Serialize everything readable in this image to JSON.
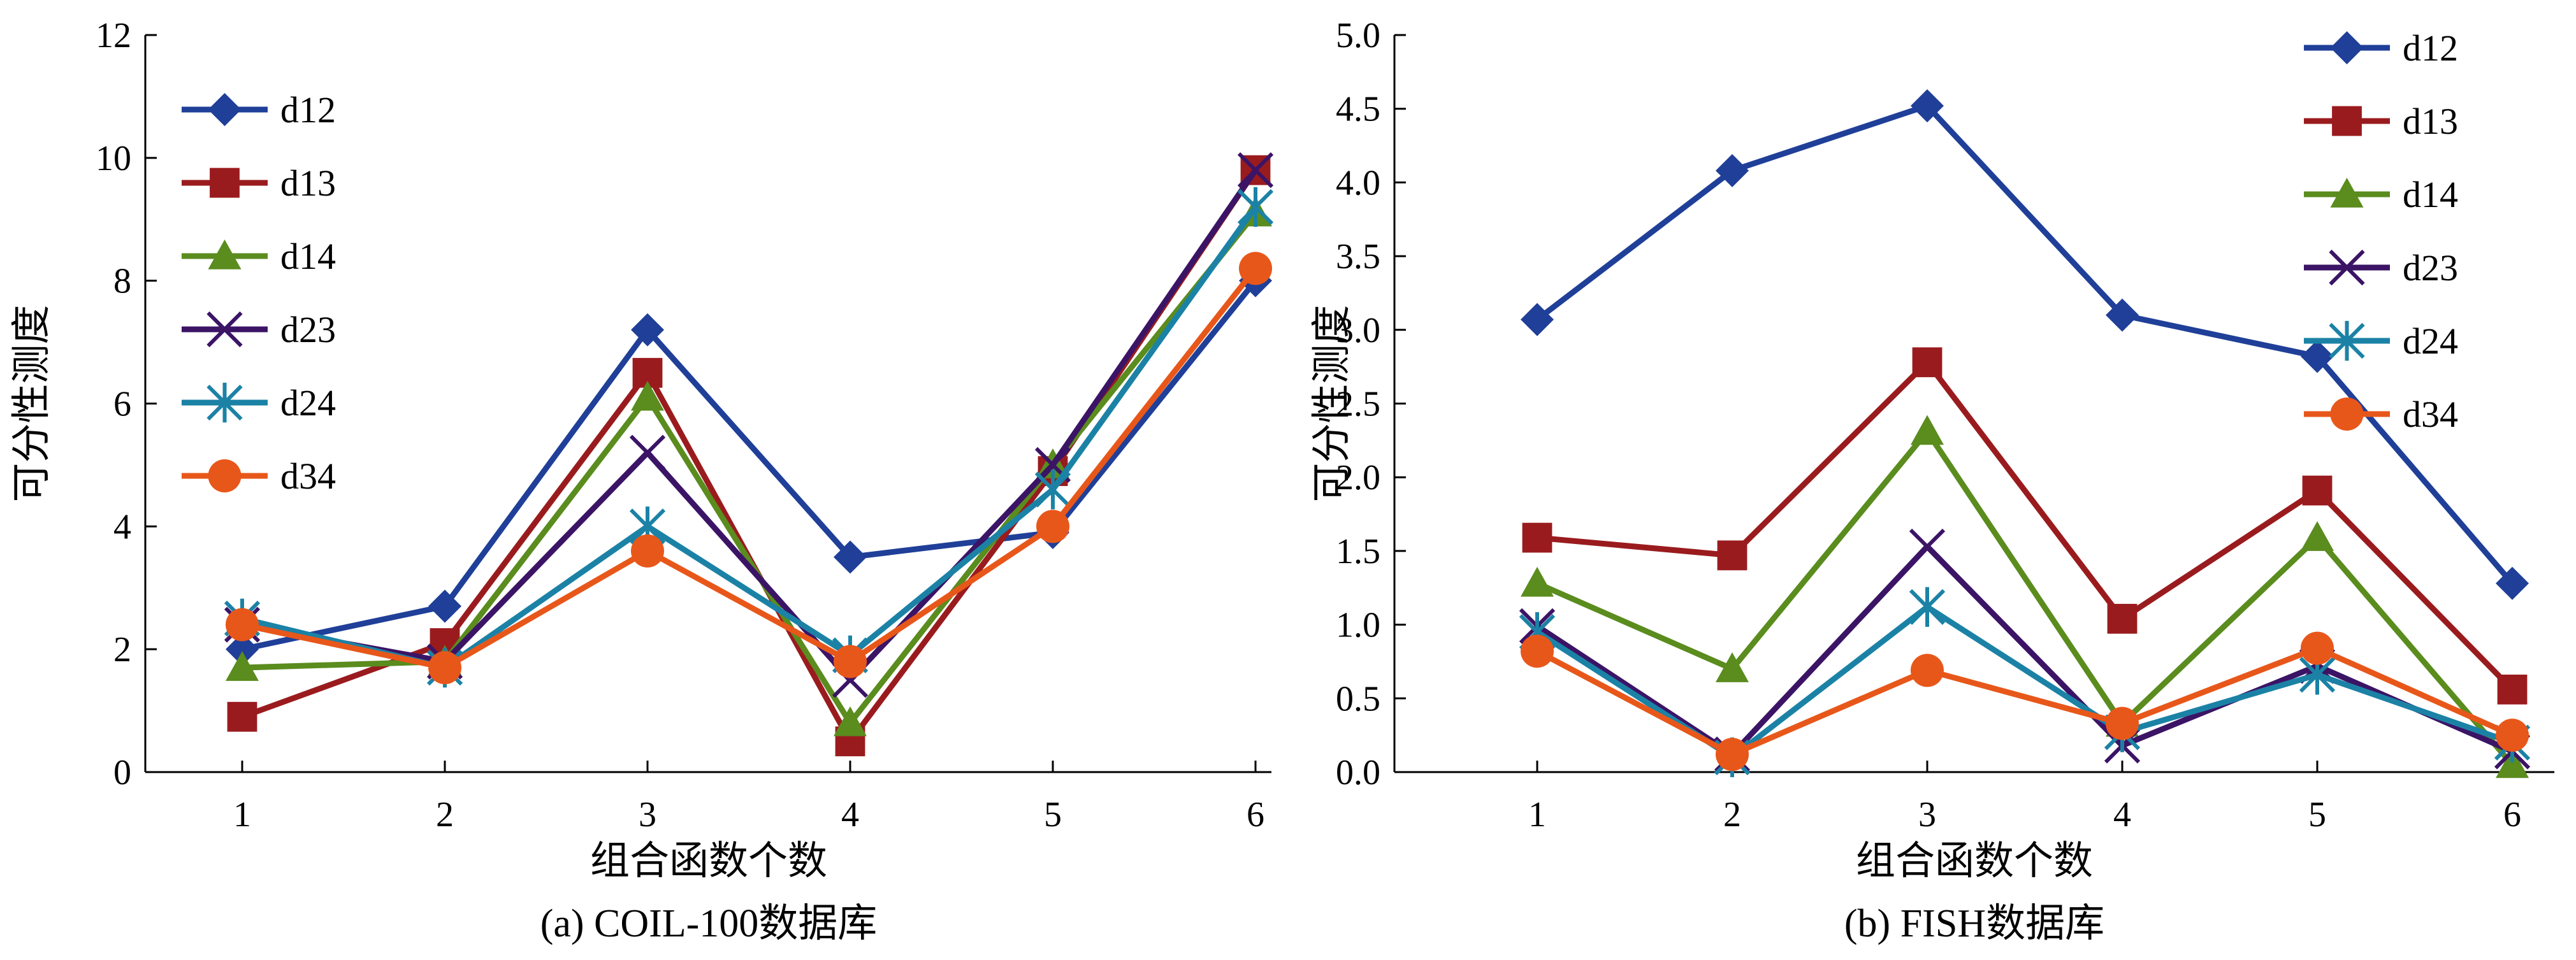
{
  "chart_data": [
    {
      "type": "line",
      "caption": "(a) COIL-100数据库",
      "xlabel": "组合函数个数",
      "ylabel": "可分性测度",
      "x": [
        1,
        2,
        3,
        4,
        5,
        6
      ],
      "ylim": [
        0,
        12
      ],
      "yticks": [
        "0",
        "2",
        "4",
        "6",
        "8",
        "10",
        "12"
      ],
      "legend_position": "top-left",
      "series": [
        {
          "name": "d12",
          "color": "#1f3f98",
          "marker": "diamond",
          "values": [
            2.0,
            2.7,
            7.2,
            3.5,
            3.9,
            8.0
          ]
        },
        {
          "name": "d13",
          "color": "#9a1b1e",
          "marker": "square",
          "values": [
            0.9,
            2.1,
            6.5,
            0.5,
            4.9,
            9.8
          ]
        },
        {
          "name": "d14",
          "color": "#5a8c1e",
          "marker": "triangle",
          "values": [
            1.7,
            1.8,
            6.1,
            0.8,
            5.0,
            9.1
          ]
        },
        {
          "name": "d23",
          "color": "#3b1466",
          "marker": "x",
          "values": [
            2.4,
            1.8,
            5.2,
            1.5,
            5.0,
            9.8
          ]
        },
        {
          "name": "d24",
          "color": "#1b82a6",
          "marker": "star",
          "values": [
            2.5,
            1.7,
            4.0,
            1.9,
            4.6,
            9.2
          ]
        },
        {
          "name": "d34",
          "color": "#e8571a",
          "marker": "circle",
          "values": [
            2.4,
            1.7,
            3.6,
            1.8,
            4.0,
            8.2
          ]
        }
      ]
    },
    {
      "type": "line",
      "caption": "(b) FISH数据库",
      "xlabel": "组合函数个数",
      "ylabel": "可分性测度",
      "x": [
        1,
        2,
        3,
        4,
        5,
        6
      ],
      "ylim": [
        0,
        5
      ],
      "yticks": [
        "0.0",
        "0.5",
        "1.0",
        "1.5",
        "2.0",
        "2.5",
        "3.0",
        "3.5",
        "4.0",
        "4.5",
        "5.0"
      ],
      "legend_position": "top-right",
      "series": [
        {
          "name": "d12",
          "color": "#1f3f98",
          "marker": "diamond",
          "values": [
            3.07,
            4.08,
            4.52,
            3.1,
            2.82,
            1.28
          ]
        },
        {
          "name": "d13",
          "color": "#9a1b1e",
          "marker": "square",
          "values": [
            1.59,
            1.47,
            2.78,
            1.04,
            1.91,
            0.56
          ]
        },
        {
          "name": "d14",
          "color": "#5a8c1e",
          "marker": "triangle",
          "values": [
            1.28,
            0.7,
            2.31,
            0.33,
            1.59,
            0.05
          ]
        },
        {
          "name": "d23",
          "color": "#3b1466",
          "marker": "x",
          "values": [
            0.99,
            0.12,
            1.53,
            0.18,
            0.72,
            0.14
          ]
        },
        {
          "name": "d24",
          "color": "#1b82a6",
          "marker": "star",
          "values": [
            0.95,
            0.1,
            1.12,
            0.27,
            0.66,
            0.2
          ]
        },
        {
          "name": "d34",
          "color": "#e8571a",
          "marker": "circle",
          "values": [
            0.82,
            0.12,
            0.69,
            0.33,
            0.84,
            0.25
          ]
        }
      ]
    }
  ]
}
